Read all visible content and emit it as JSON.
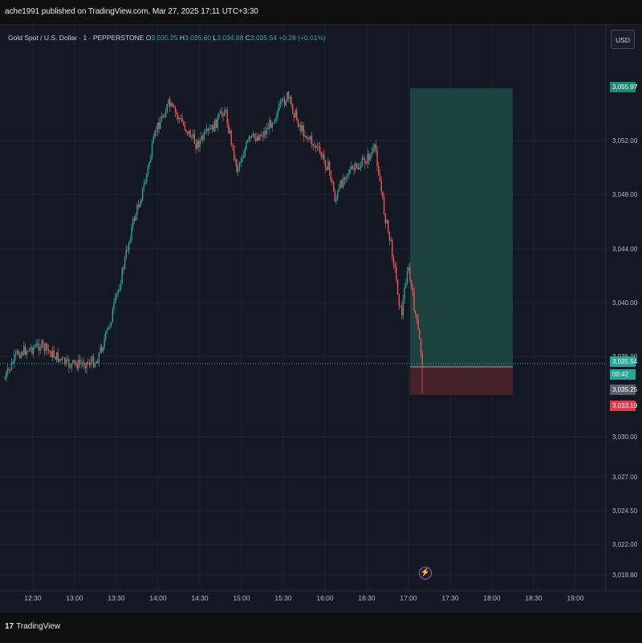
{
  "header": {
    "published_text": "ache1991 published on TradingView.com, Mar 27, 2025 17:11 UTC+3:30"
  },
  "legend": {
    "symbol": "Gold Spot / U.S. Dollar · 1 · PEPPERSTONE",
    "open_label": "O",
    "open": "3,035.25",
    "high_label": "H",
    "high": "3,035.60",
    "low_label": "L",
    "low": "3,034.88",
    "close_label": "C",
    "close": "3,035.54",
    "change": "+0.28 (+0.01%)"
  },
  "currency_button": "USD",
  "price_axis": {
    "ticks": [
      "3,055.97",
      "3,052.00",
      "3,048.00",
      "3,044.00",
      "3,040.00",
      "3,036.00",
      "3,030.00",
      "3,027.00",
      "3,024.50",
      "3,022.00",
      "3,019.80"
    ]
  },
  "time_axis": {
    "ticks": [
      "12:30",
      "13:00",
      "13:30",
      "14:00",
      "14:30",
      "15:00",
      "15:30",
      "16:00",
      "16:30",
      "17:00",
      "17:30",
      "18:00",
      "18:30",
      "19:00"
    ]
  },
  "price_tags": {
    "target": "3,055.97",
    "current": "3,035.54",
    "countdown": "00:42",
    "entry": "3,035.25",
    "stop": "3,033.19"
  },
  "colors": {
    "up": "#26a69a",
    "down": "#ef5350",
    "profit_zone": "#1d4a45",
    "loss_zone": "#4a2229",
    "background": "#141823",
    "grid": "#242a36"
  },
  "footer": {
    "brand": "TradingView"
  }
}
